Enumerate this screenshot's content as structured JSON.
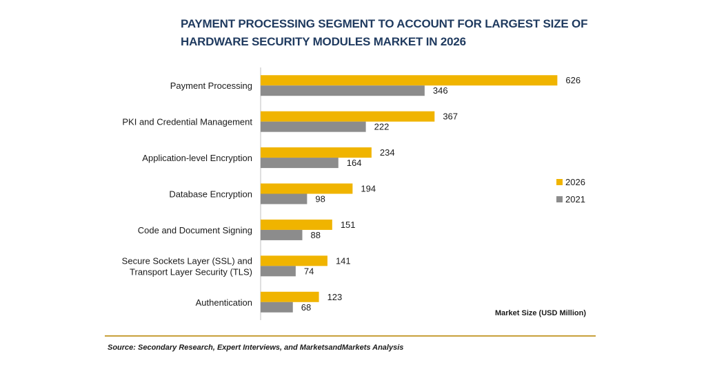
{
  "chart_data": {
    "type": "bar",
    "orientation": "horizontal",
    "title_lines": [
      "PAYMENT PROCESSING SEGMENT TO ACCOUNT FOR LARGEST SIZE OF",
      "HARDWARE SECURITY MODULES MARKET IN 2026"
    ],
    "categories": [
      [
        "Payment Processing"
      ],
      [
        "PKI and Credential Management"
      ],
      [
        "Application-level Encryption"
      ],
      [
        "Database Encryption"
      ],
      [
        "Code and Document Signing"
      ],
      [
        "Secure Sockets Layer (SSL) and",
        "Transport Layer Security (TLS)"
      ],
      [
        "Authentication"
      ]
    ],
    "series": [
      {
        "name": "2026",
        "color": "#f0b400",
        "values": [
          626,
          367,
          234,
          194,
          151,
          141,
          123
        ]
      },
      {
        "name": "2021",
        "color": "#8c8c8c",
        "values": [
          346,
          222,
          164,
          98,
          88,
          74,
          68
        ]
      }
    ],
    "xlim": [
      0,
      640
    ],
    "legend_position": "right",
    "unit_label": "Market Size (USD Million)",
    "grid": false
  },
  "source": "Source: Secondary Research, Expert Interviews, and MarketsandMarkets Analysis"
}
